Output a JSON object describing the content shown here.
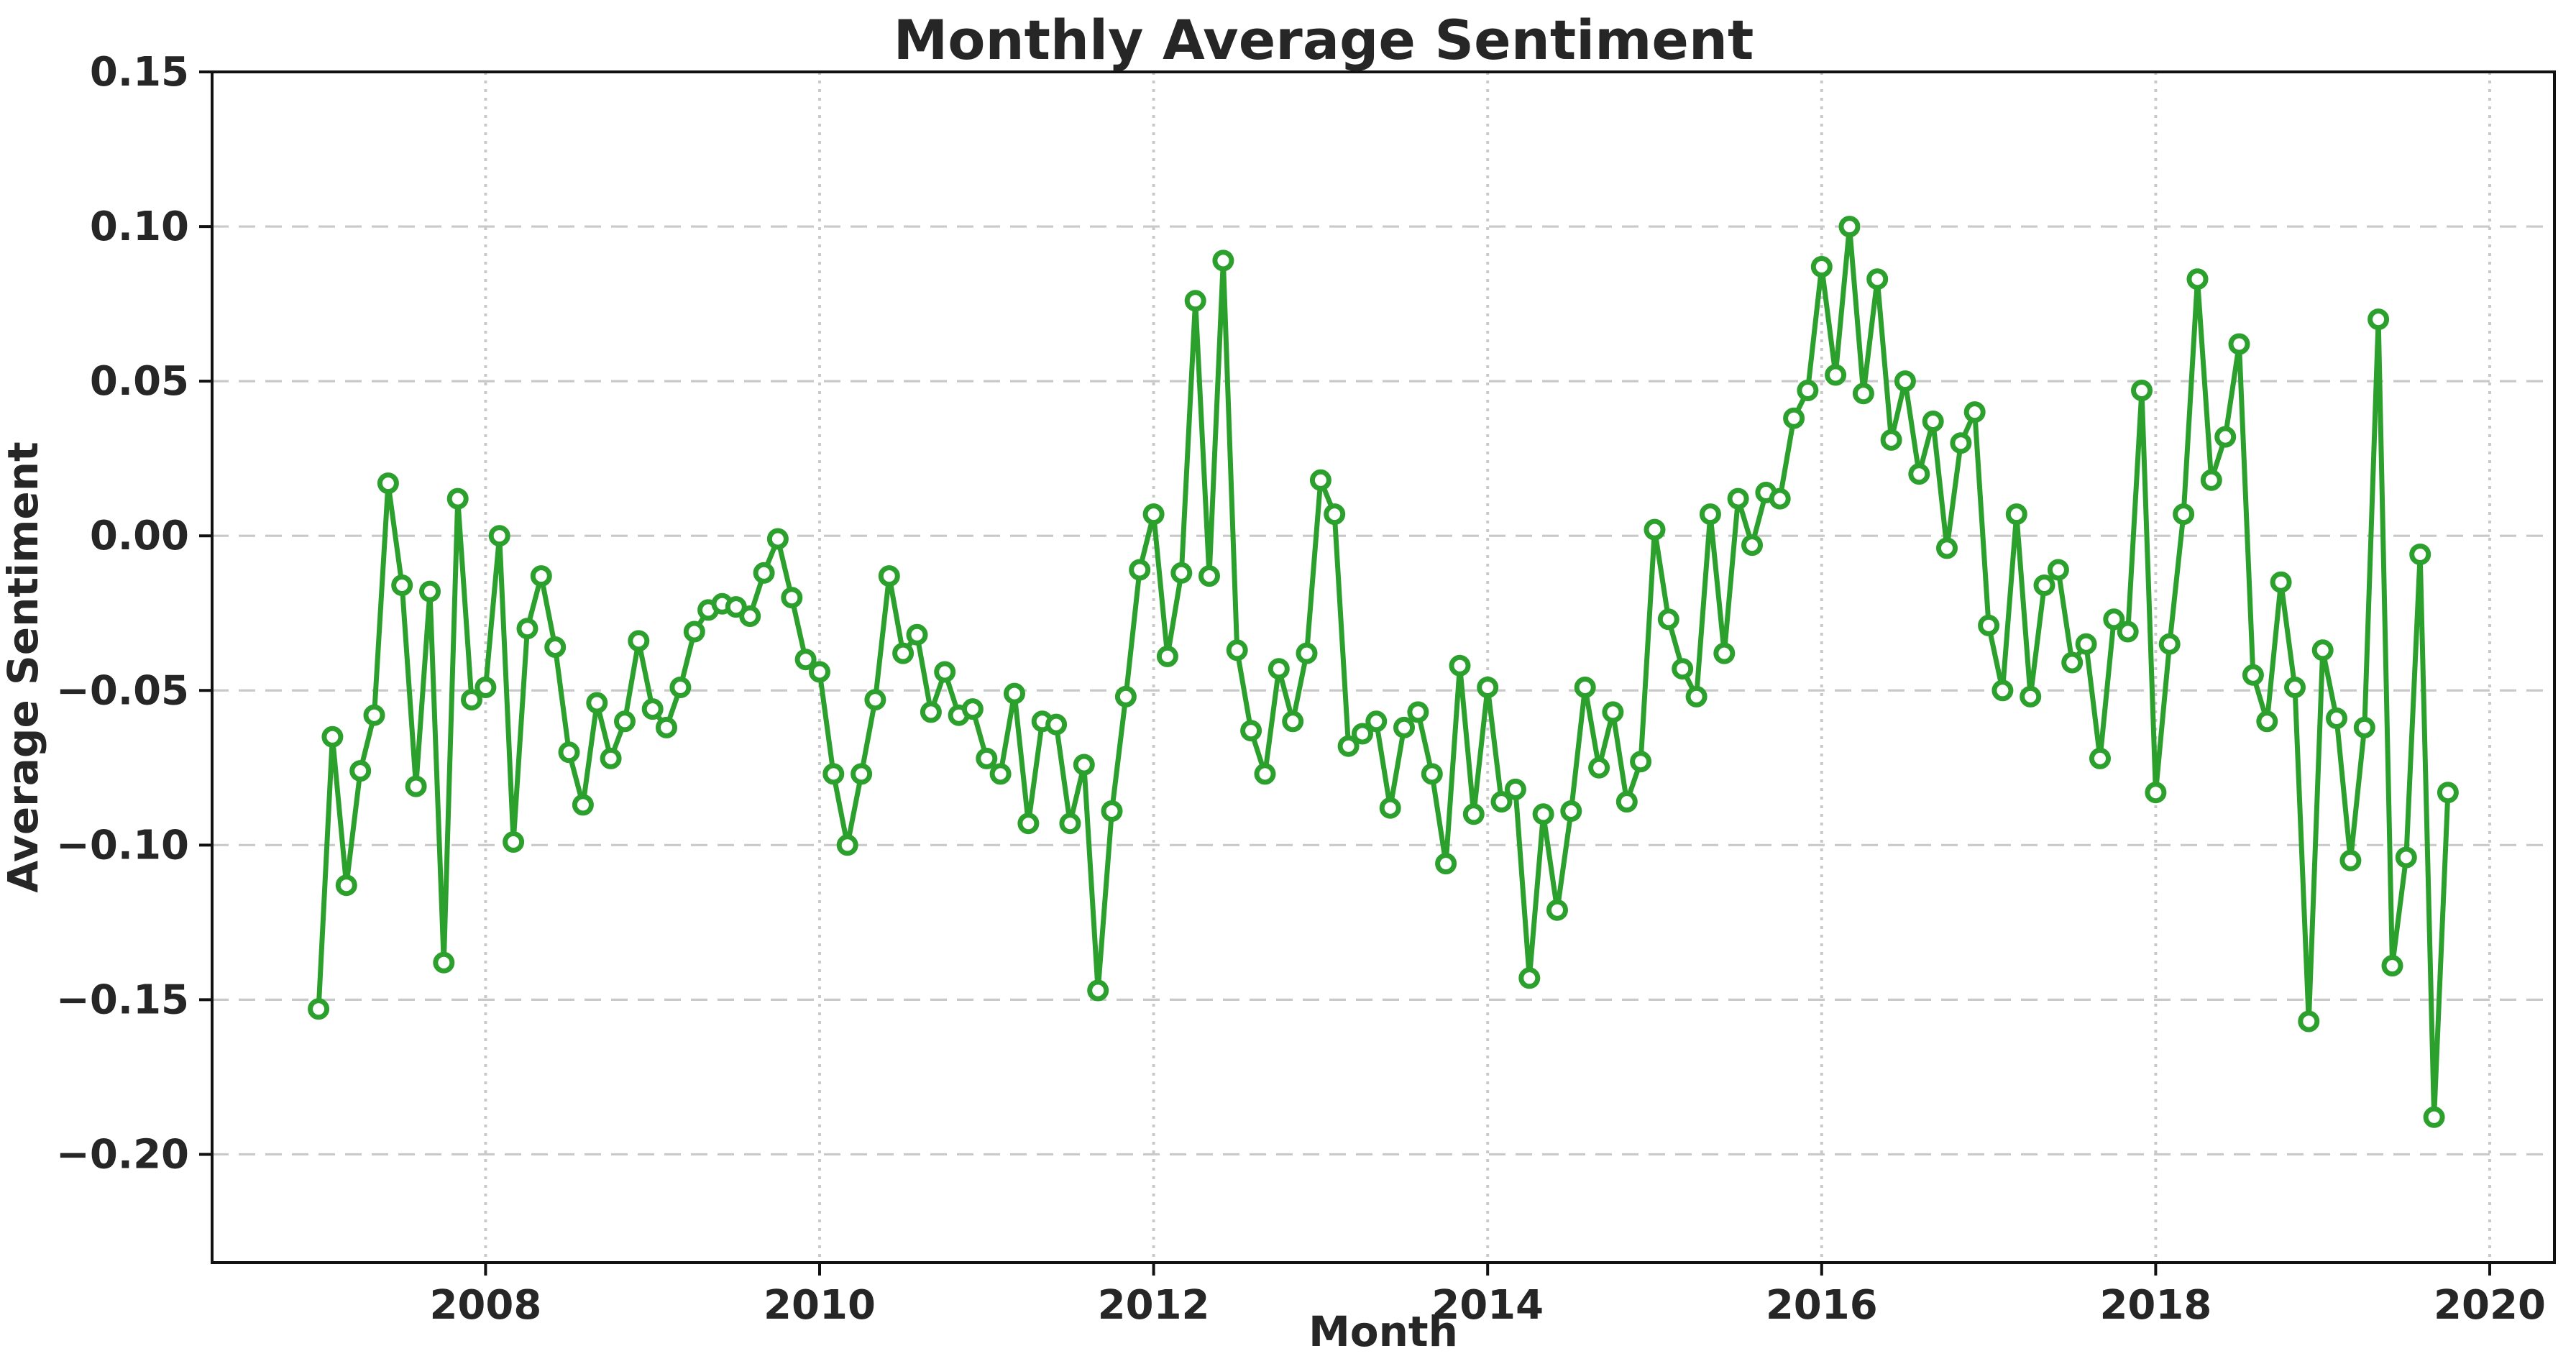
{
  "figure": {
    "title": "Monthly Average Sentiment",
    "xlabel": "Month",
    "ylabel": "Average Sentiment"
  },
  "chart_data": {
    "type": "line",
    "title": "Monthly Average Sentiment",
    "xlabel": "Month",
    "ylabel": "Average Sentiment",
    "legend": "none",
    "grid": true,
    "background": "#ffffff",
    "text_color": "#262626",
    "line_color": "#2ca02c",
    "marker_style": "open-circle",
    "marker_face_color": "#ffffff",
    "grid_color": "#c9c9c9",
    "spine_color": "#111111",
    "xlim": [
      2006.3625,
      2020.3875
    ],
    "ylim": [
      -0.235,
      0.15
    ],
    "xticks": [
      {
        "label": "2008",
        "value": 2008
      },
      {
        "label": "2010",
        "value": 2010
      },
      {
        "label": "2012",
        "value": 2012
      },
      {
        "label": "2014",
        "value": 2014
      },
      {
        "label": "2016",
        "value": 2016
      },
      {
        "label": "2018",
        "value": 2018
      },
      {
        "label": "2020",
        "value": 2020
      }
    ],
    "yticks": [
      {
        "label": "0.15",
        "value": 0.15
      },
      {
        "label": "0.10",
        "value": 0.1
      },
      {
        "label": "0.05",
        "value": 0.05
      },
      {
        "label": "0.00",
        "value": 0.0
      },
      {
        "label": "−0.05",
        "value": -0.05
      },
      {
        "label": "−0.10",
        "value": -0.1
      },
      {
        "label": "−0.15",
        "value": -0.15
      },
      {
        "label": "−0.20",
        "value": -0.2
      }
    ],
    "series": [
      {
        "name": "monthly_average_sentiment",
        "start": "2007-01",
        "frequency": "monthly",
        "values": [
          -0.153,
          -0.065,
          -0.113,
          -0.076,
          -0.058,
          0.017,
          -0.016,
          -0.081,
          -0.018,
          -0.138,
          0.012,
          -0.053,
          -0.049,
          0.0,
          -0.099,
          -0.03,
          -0.013,
          -0.036,
          -0.07,
          -0.087,
          -0.054,
          -0.072,
          -0.06,
          -0.034,
          -0.056,
          -0.062,
          -0.049,
          -0.031,
          -0.024,
          -0.022,
          -0.023,
          -0.026,
          -0.012,
          -0.001,
          -0.02,
          -0.04,
          -0.044,
          -0.077,
          -0.1,
          -0.077,
          -0.053,
          -0.013,
          -0.038,
          -0.032,
          -0.057,
          -0.044,
          -0.058,
          -0.056,
          -0.072,
          -0.077,
          -0.051,
          -0.093,
          -0.06,
          -0.061,
          -0.093,
          -0.074,
          -0.147,
          -0.089,
          -0.052,
          -0.011,
          0.007,
          -0.039,
          -0.012,
          0.076,
          -0.013,
          0.089,
          -0.037,
          -0.063,
          -0.077,
          -0.043,
          -0.06,
          -0.038,
          0.018,
          0.007,
          -0.068,
          -0.064,
          -0.06,
          -0.088,
          -0.062,
          -0.057,
          -0.077,
          -0.106,
          -0.042,
          -0.09,
          -0.049,
          -0.086,
          -0.082,
          -0.143,
          -0.09,
          -0.121,
          -0.089,
          -0.049,
          -0.075,
          -0.057,
          -0.086,
          -0.073,
          0.002,
          -0.027,
          -0.043,
          -0.052,
          0.007,
          -0.038,
          0.012,
          -0.003,
          0.014,
          0.012,
          0.038,
          0.047,
          0.087,
          0.052,
          0.1,
          0.046,
          0.083,
          0.031,
          0.05,
          0.02,
          0.037,
          -0.004,
          0.03,
          0.04,
          -0.029,
          -0.05,
          0.007,
          -0.052,
          -0.016,
          -0.011,
          -0.041,
          -0.035,
          -0.072,
          -0.027,
          -0.031,
          0.047,
          -0.083,
          -0.035,
          0.007,
          0.083,
          0.018,
          0.032,
          0.062,
          -0.045,
          -0.06,
          -0.015,
          -0.049,
          -0.157,
          -0.037,
          -0.059,
          -0.105,
          -0.062,
          0.07,
          -0.139,
          -0.104,
          -0.006,
          -0.188,
          -0.083
        ]
      }
    ]
  }
}
